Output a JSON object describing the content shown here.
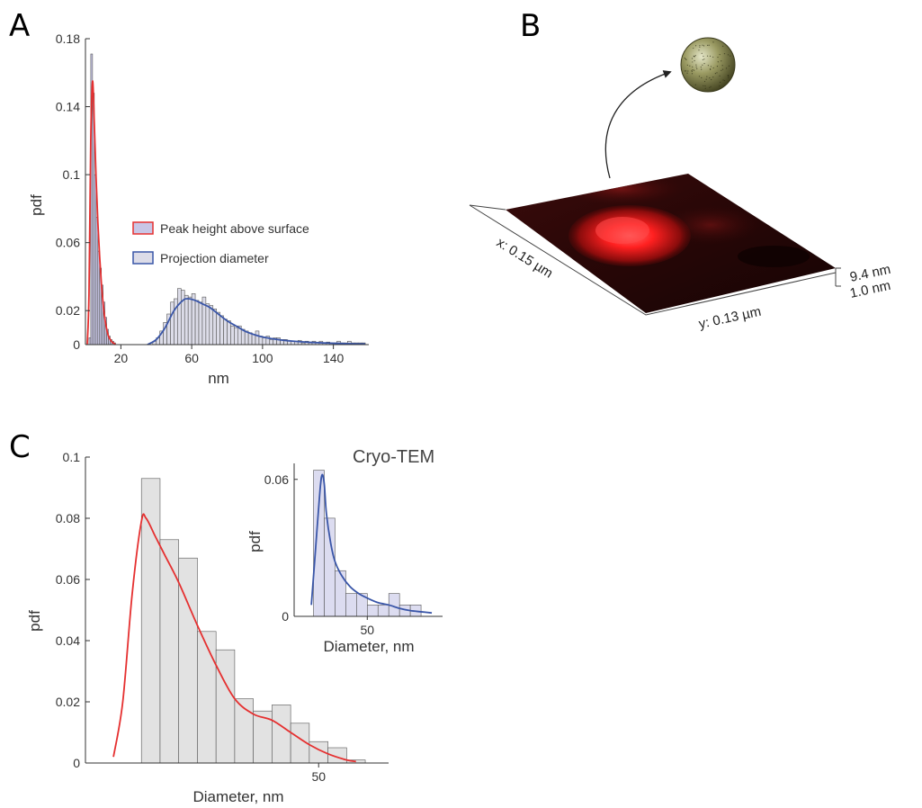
{
  "panels": {
    "a": "A",
    "b": "B",
    "c": "C"
  },
  "chart_data": [
    {
      "type": "bar",
      "panel": "A",
      "xlabel": "nm",
      "ylabel": "pdf",
      "xlim": [
        0,
        160
      ],
      "ylim": [
        0,
        0.18
      ],
      "x_ticks": [
        "20",
        "60",
        "100",
        "140"
      ],
      "x_tick_values": [
        20,
        60,
        100,
        140
      ],
      "y_ticks": [
        "0",
        "0.02",
        "0.06",
        "0.1",
        "0.14",
        "0.18"
      ],
      "y_tick_values": [
        0,
        0.02,
        0.06,
        0.1,
        0.14,
        0.18
      ],
      "legend": [
        {
          "name": "Peak height above surface",
          "fill": "#c8c6e6",
          "stroke": "#e53030"
        },
        {
          "name": "Projection diameter",
          "fill": "#dcdce8",
          "stroke": "#3a56a8"
        }
      ],
      "series": [
        {
          "name": "Peak height above surface",
          "bin_width": 1,
          "bin_start": [
            2,
            3,
            4,
            5,
            6,
            7,
            8,
            9,
            10,
            11,
            12,
            13,
            14,
            15,
            16
          ],
          "values": [
            0.004,
            0.171,
            0.148,
            0.1,
            0.075,
            0.055,
            0.045,
            0.035,
            0.025,
            0.016,
            0.009,
            0.005,
            0.003,
            0.002,
            0.001
          ],
          "fit_x": [
            1,
            2,
            3,
            4,
            5,
            6,
            7,
            8,
            9,
            10,
            11,
            12,
            13,
            14,
            15,
            16,
            17
          ],
          "fit_y": [
            0,
            0.03,
            0.12,
            0.155,
            0.13,
            0.098,
            0.072,
            0.052,
            0.036,
            0.024,
            0.015,
            0.009,
            0.005,
            0.003,
            0.0015,
            0.0008,
            0
          ],
          "stroke": "#e53030",
          "fill": "#c8c6e6"
        },
        {
          "name": "Projection diameter",
          "bin_width": 2,
          "bin_start": [
            38,
            40,
            42,
            44,
            46,
            48,
            50,
            52,
            54,
            56,
            58,
            60,
            62,
            64,
            66,
            68,
            70,
            72,
            74,
            76,
            78,
            80,
            82,
            84,
            86,
            88,
            90,
            92,
            94,
            96,
            98,
            100,
            102,
            104,
            106,
            108,
            110,
            112,
            114,
            116,
            118,
            120,
            122,
            124,
            126,
            128,
            130,
            132,
            134,
            136,
            138,
            140,
            142,
            144,
            146,
            148,
            150,
            152,
            154,
            156
          ],
          "values": [
            0.002,
            0.004,
            0.008,
            0.013,
            0.018,
            0.025,
            0.027,
            0.033,
            0.032,
            0.029,
            0.028,
            0.03,
            0.026,
            0.025,
            0.028,
            0.024,
            0.023,
            0.021,
            0.019,
            0.017,
            0.015,
            0.014,
            0.011,
            0.01,
            0.011,
            0.009,
            0.008,
            0.007,
            0.006,
            0.008,
            0.005,
            0.004,
            0.005,
            0.003,
            0.004,
            0.004,
            0.003,
            0.003,
            0.002,
            0.002,
            0.002,
            0.0025,
            0.001,
            0.002,
            0.001,
            0.002,
            0.001,
            0.002,
            0.001,
            0.0015,
            0.001,
            0.001,
            0.002,
            0.001,
            0.001,
            0.002,
            0.001,
            0.001,
            0.001,
            0.001
          ],
          "fit_x": [
            35,
            40,
            45,
            50,
            55,
            58,
            62,
            66,
            70,
            75,
            80,
            85,
            90,
            95,
            100,
            110,
            120,
            130,
            140,
            150,
            158
          ],
          "fit_y": [
            0,
            0.003,
            0.01,
            0.02,
            0.026,
            0.027,
            0.026,
            0.024,
            0.022,
            0.018,
            0.014,
            0.011,
            0.008,
            0.006,
            0.0045,
            0.0028,
            0.0018,
            0.0012,
            0.0008,
            0.0005,
            0.0004
          ],
          "stroke": "#3a56a8",
          "fill": "#dcdce8"
        }
      ]
    },
    {
      "type": "bar",
      "panel": "C",
      "xlabel": "Diameter, nm",
      "ylabel": "pdf",
      "xlim": [
        0,
        65
      ],
      "ylim": [
        0,
        0.1
      ],
      "x_ticks": [
        "50"
      ],
      "x_tick_values": [
        50
      ],
      "y_ticks": [
        "0",
        "0.02",
        "0.04",
        "0.06",
        "0.08",
        "0.1"
      ],
      "y_tick_values": [
        0,
        0.02,
        0.04,
        0.06,
        0.08,
        0.1
      ],
      "series": [
        {
          "name": "histogram",
          "bin_width": 4,
          "bin_start": [
            12,
            16,
            20,
            24,
            28,
            32,
            36,
            40,
            44,
            48,
            52,
            56
          ],
          "values": [
            0.093,
            0.073,
            0.067,
            0.043,
            0.037,
            0.021,
            0.017,
            0.019,
            0.013,
            0.007,
            0.005,
            0.001
          ],
          "fit_x": [
            6,
            8,
            10,
            12,
            13,
            15,
            17,
            20,
            24,
            28,
            32,
            36,
            40,
            44,
            48,
            52,
            56,
            58
          ],
          "fit_y": [
            0.002,
            0.02,
            0.055,
            0.079,
            0.08,
            0.074,
            0.068,
            0.059,
            0.045,
            0.032,
            0.021,
            0.016,
            0.014,
            0.01,
            0.006,
            0.003,
            0.001,
            0.0005
          ],
          "stroke": "#e53030",
          "fill": "#e2e2e2"
        }
      ]
    },
    {
      "type": "bar",
      "panel": "C-inset",
      "title": "Cryo-TEM",
      "xlabel": "Diameter, nm",
      "ylabel": "pdf",
      "xlim": [
        16,
        85
      ],
      "ylim": [
        0,
        0.067
      ],
      "x_ticks": [
        "50"
      ],
      "x_tick_values": [
        50
      ],
      "y_ticks": [
        "0",
        "0.06"
      ],
      "y_tick_values": [
        0,
        0.06
      ],
      "series": [
        {
          "name": "histogram",
          "bin_width": 5,
          "bin_start": [
            25,
            30,
            35,
            40,
            45,
            50,
            55,
            60,
            65,
            70,
            75
          ],
          "values": [
            0.064,
            0.043,
            0.02,
            0.01,
            0.01,
            0.005,
            0.005,
            0.01,
            0.005,
            0.005,
            0.0
          ],
          "fit_x": [
            24,
            26,
            28,
            29,
            30,
            31,
            33,
            35,
            38,
            42,
            46,
            50,
            55,
            60,
            65,
            70,
            75,
            80
          ],
          "fit_y": [
            0.005,
            0.03,
            0.055,
            0.062,
            0.058,
            0.045,
            0.032,
            0.024,
            0.018,
            0.013,
            0.01,
            0.008,
            0.006,
            0.005,
            0.0035,
            0.0025,
            0.002,
            0.0015
          ],
          "stroke": "#3a56a8",
          "fill": "#dcdcf0"
        }
      ]
    }
  ],
  "surface": {
    "x_label": "x: 0.15 µm",
    "y_label": "y: 0.13 µm",
    "z_max": "9.4 nm",
    "z_min": "1.0 nm",
    "colors": {
      "dark": "#1a0808",
      "mid": "#5a1010",
      "peak": "#ff2a2a"
    }
  }
}
